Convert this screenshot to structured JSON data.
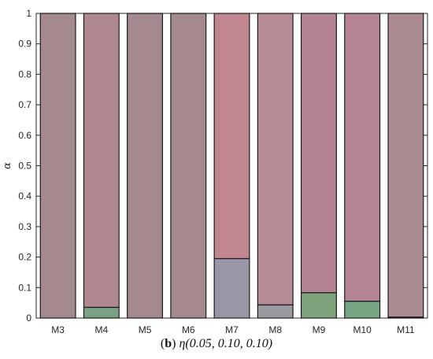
{
  "chart_data": {
    "type": "bar",
    "stacked": true,
    "categories": [
      "M3",
      "M4",
      "M5",
      "M6",
      "M7",
      "M8",
      "M9",
      "M10",
      "M11"
    ],
    "segments": [
      {
        "bottom": [
          0,
          0.035,
          0,
          0,
          0.195,
          0.043,
          0.083,
          0.055,
          0.003
        ],
        "bottom_colors": [
          "#a48a8f",
          "#7aa184",
          "#a48a8f",
          "#a48a8f",
          "#9a96a7",
          "#9b9aa0",
          "#7fa37c",
          "#76a583",
          "#8e9a8e"
        ],
        "top_colors": [
          "#a48a8f",
          "#b0888f",
          "#a48a8f",
          "#a48a8f",
          "#c08791",
          "#b58b95",
          "#b58493",
          "#b68595",
          "#ac8a92"
        ]
      }
    ],
    "values": [
      1,
      1,
      1,
      1,
      1,
      1,
      1,
      1,
      1
    ],
    "yticks": [
      "0",
      "0.1",
      "0.2",
      "0.3",
      "0.4",
      "0.5",
      "0.6",
      "0.7",
      "0.8",
      "0.9",
      "1"
    ],
    "ylim": [
      0,
      1
    ],
    "ylabel": "α",
    "xlabel": "",
    "title": ""
  },
  "caption": {
    "label": "b",
    "text_open": "(",
    "text_close": ") ",
    "formula": "η(0.05, 0.10, 0.10)"
  }
}
